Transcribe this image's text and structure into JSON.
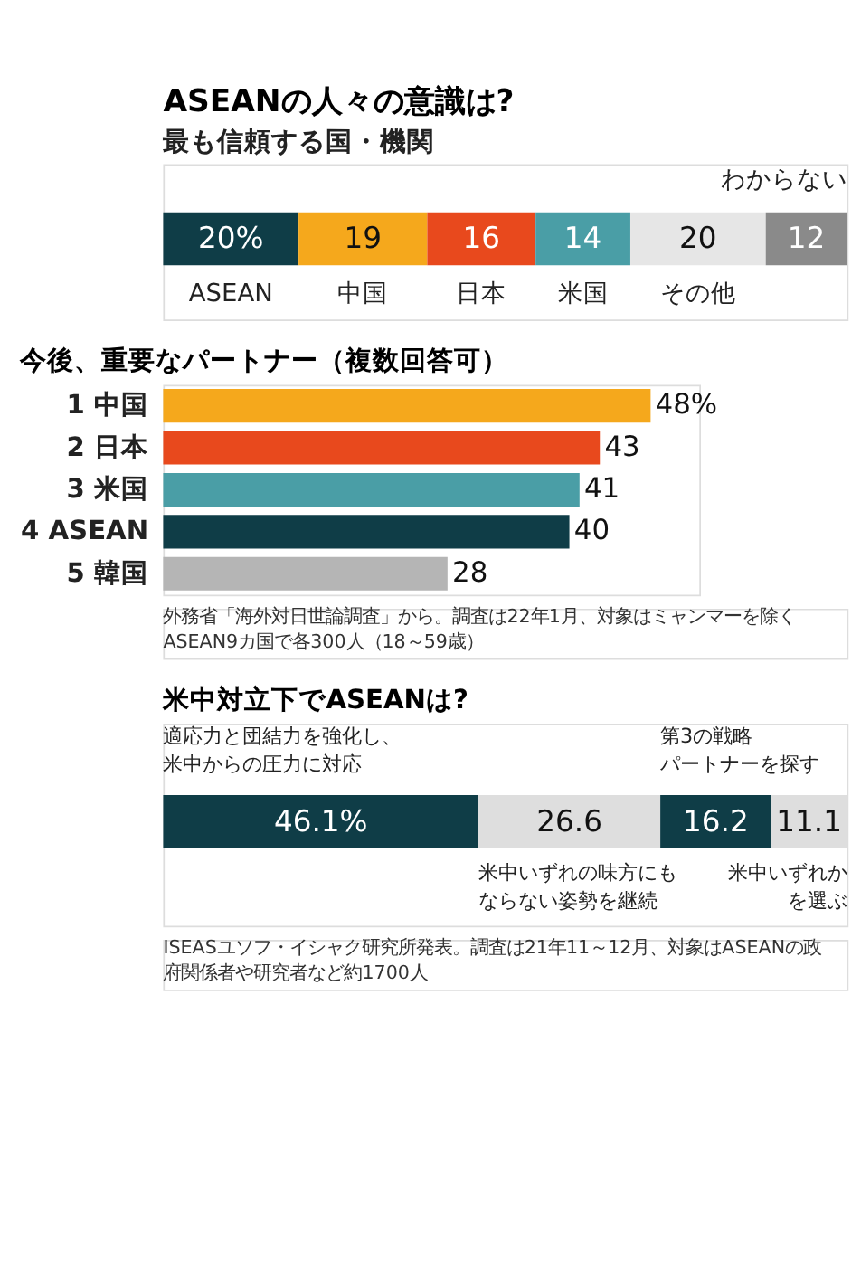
{
  "chart_data": [
    {
      "type": "bar",
      "orientation": "horizontal",
      "stacked": true,
      "title": "ASEANの人々の意識は?",
      "subtitle": "最も信頼する国・機関",
      "categories": [
        null
      ],
      "series": [
        {
          "name": "ASEAN",
          "color": "#0f3d47",
          "values": [
            20
          ],
          "value_labels": [
            "20%"
          ]
        },
        {
          "name": "中国",
          "color": "#f5a81c",
          "values": [
            19
          ],
          "value_labels": [
            "19"
          ]
        },
        {
          "name": "日本",
          "color": "#e8491d",
          "values": [
            16
          ],
          "value_labels": [
            "16"
          ]
        },
        {
          "name": "米国",
          "color": "#4a9ea6",
          "values": [
            14
          ],
          "value_labels": [
            "14"
          ]
        },
        {
          "name": "その他",
          "color": "#e6e6e6",
          "values": [
            20
          ],
          "value_labels": [
            "20"
          ]
        },
        {
          "name": "わからない",
          "color": "#8a8a8a",
          "values": [
            12
          ],
          "value_labels": [
            "12"
          ]
        }
      ]
    },
    {
      "type": "bar",
      "orientation": "horizontal",
      "title": "今後、重要なパートナー（複数回答可）",
      "categories": [
        "1 中国",
        "2 日本",
        "3 米国",
        "4 ASEAN",
        "5 韓国"
      ],
      "values": [
        48,
        43,
        41,
        40,
        28
      ],
      "colors": [
        "#f5a81c",
        "#e8491d",
        "#4a9ea6",
        "#0f3d47",
        "#b5b5b5"
      ],
      "value_labels": [
        "48%",
        "43",
        "41",
        "40",
        "28"
      ],
      "annotations": [
        "外務省「海外対日世論調査」から。調査は22年1月、対象はミャンマーを除くASEAN9カ国で各300人（18～59歳）"
      ]
    },
    {
      "type": "bar",
      "orientation": "horizontal",
      "stacked": true,
      "title": "米中対立下でASEANは?",
      "categories": [
        null
      ],
      "series": [
        {
          "name": "適応力と団結力を強化し、米中からの圧力に対応",
          "color": "#0f3d47",
          "values": [
            46.1
          ],
          "value_labels": [
            "46.1%"
          ]
        },
        {
          "name": "米中いずれの味方にもならない姿勢を継続",
          "color": "#dedede",
          "values": [
            26.6
          ],
          "value_labels": [
            "26.6"
          ]
        },
        {
          "name": "第3の戦略パートナーを探す",
          "color": "#0f3d47",
          "values": [
            16.2
          ],
          "value_labels": [
            "16.2"
          ]
        },
        {
          "name": "米中いずれかを選ぶ",
          "color": "#dedede",
          "values": [
            11.1
          ],
          "value_labels": [
            "11.1"
          ]
        }
      ],
      "annotations": [
        "ISEASユソフ・イシャク研究所発表。調査は21年11～12月、対象はASEANの政府関係者や研究者など約1700人"
      ]
    }
  ]
}
